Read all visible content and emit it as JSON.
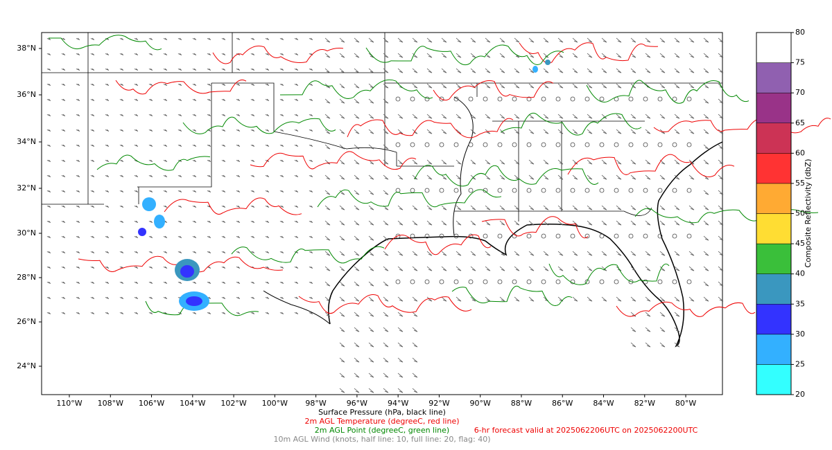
{
  "map": {
    "lat_labels": [
      "38°N",
      "36°N",
      "34°N",
      "32°N",
      "30°N",
      "28°N",
      "26°N",
      "24°N"
    ],
    "lon_labels": [
      "110°W",
      "108°W",
      "106°W",
      "104°W",
      "102°W",
      "100°W",
      "98°W",
      "96°W",
      "94°W",
      "92°W",
      "90°W",
      "88°W",
      "86°W",
      "84°W",
      "82°W",
      "80°W"
    ]
  },
  "colorbar": {
    "label": "Composite Reflectivity (dbZ)",
    "ticks": [
      20,
      25,
      30,
      35,
      40,
      45,
      50,
      55,
      60,
      65,
      70,
      75,
      80
    ],
    "colors": [
      "#33ffff",
      "#33b0ff",
      "#3333ff",
      "#3a97bf",
      "#3abf3a",
      "#ffdd33",
      "#ffaa33",
      "#ff3333",
      "#cc3355",
      "#993388",
      "#9060b0",
      "#ffffff"
    ]
  },
  "captions": {
    "pressure": "Surface Pressure (hPa, black line)",
    "temperature": "2m AGL Temperature (degreeC, red line)",
    "dewpoint": "2m AGL Point (degreeC, green line)",
    "forecast": "6-hr forecast valid at 2025062206UTC on 2025062200UTC",
    "wind": "10m AGL Wind (knots, half line: 10, full line: 20, flag: 40)"
  }
}
